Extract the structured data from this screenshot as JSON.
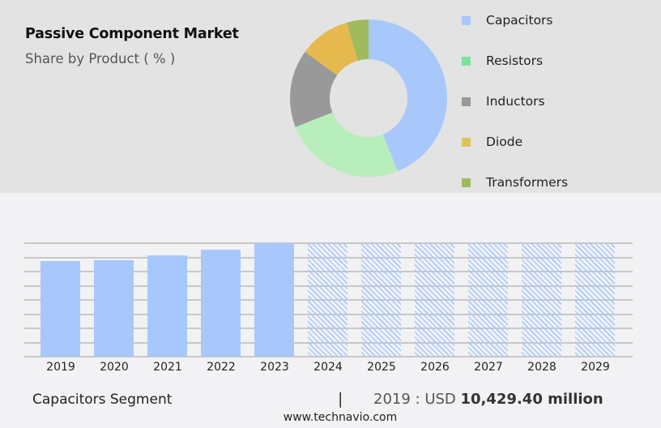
{
  "header": {
    "title": "Passive Component Market",
    "subtitle": "Share by Product ( % )"
  },
  "legend": [
    {
      "label": "Capacitors",
      "color": "#a8c8fc"
    },
    {
      "label": "Resistors",
      "color": "#7be39a"
    },
    {
      "label": "Inductors",
      "color": "#999999"
    },
    {
      "label": "Diode",
      "color": "#dcc35a"
    },
    {
      "label": "Transformers",
      "color": "#9fbb5d"
    }
  ],
  "footer": {
    "segment": "Capacitors Segment",
    "separator": "|",
    "value_prefix": "2019 : USD ",
    "value_bold": "10,429.40 million",
    "url": "www.technavio.com"
  },
  "chart_data": [
    {
      "type": "pie",
      "variant": "donut",
      "title": "Passive Component Market",
      "subtitle": "Share by Product ( % )",
      "categories": [
        "Capacitors",
        "Resistors",
        "Inductors",
        "Diode",
        "Transformers"
      ],
      "values": [
        44,
        25,
        16,
        10.5,
        4.5
      ],
      "colors": [
        "#a8c8fc",
        "#b8eebb",
        "#999999",
        "#e6b94f",
        "#9fbb5d"
      ],
      "legend_position": "right",
      "value_note": "estimated from slice angles; no data labels shown"
    },
    {
      "type": "bar",
      "title": "Capacitors Segment",
      "categories": [
        "2019",
        "2020",
        "2021",
        "2022",
        "2023",
        "2024",
        "2025",
        "2026",
        "2027",
        "2028",
        "2029"
      ],
      "values": [
        10429.4,
        10520,
        11050,
        11670,
        12380,
        null,
        null,
        null,
        null,
        null,
        null
      ],
      "forecast_categories": [
        "2024",
        "2025",
        "2026",
        "2027",
        "2028",
        "2029"
      ],
      "forecast_style": "hatched, full height, values not disclosed",
      "ylabel": "USD million",
      "xlabel": "",
      "grid": true,
      "y_axis_labels_shown": false,
      "annotation": "2019 : USD 10,429.40 million",
      "color": "#a8c8fc"
    }
  ]
}
